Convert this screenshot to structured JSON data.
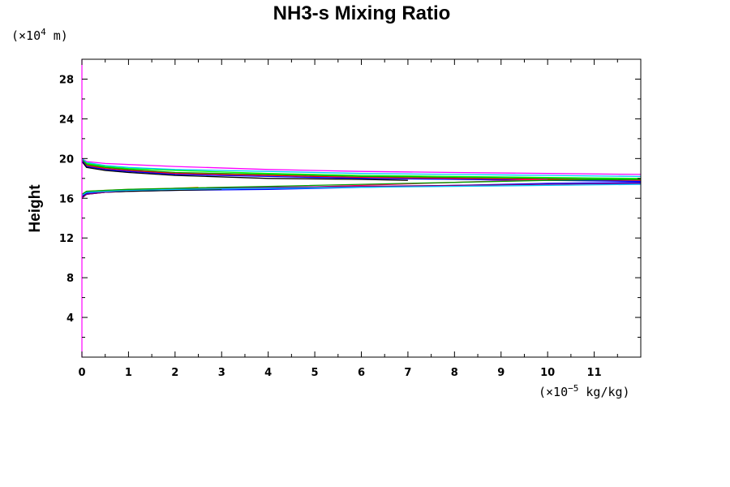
{
  "chart_data": {
    "type": "line",
    "title": "NH3-s Mixing Ratio",
    "ylabel": "Height",
    "xlabel": "",
    "x_unit": {
      "prefix": "(×10",
      "exp": "−5",
      "suffix": " kg/kg)"
    },
    "y_unit": {
      "prefix": "(×10",
      "exp": "4",
      "suffix": " m)"
    },
    "xlim": [
      0,
      12
    ],
    "ylim": [
      0,
      30
    ],
    "x_ticks": [
      "0",
      "1",
      "2",
      "3",
      "4",
      "5",
      "6",
      "7",
      "8",
      "9",
      "10",
      "11"
    ],
    "y_ticks": [
      "4",
      "8",
      "12",
      "16",
      "20",
      "24",
      "28"
    ],
    "grid": false,
    "series": [
      {
        "color": "#ff00ff",
        "x": [
          0,
          0.1,
          0.5,
          1,
          2,
          4,
          6,
          8,
          10,
          12
        ],
        "y": [
          20.0,
          19.7,
          19.5,
          19.4,
          19.2,
          18.9,
          18.7,
          18.6,
          18.5,
          18.4
        ]
      },
      {
        "color": "#00c8ff",
        "x": [
          0,
          0.1,
          0.5,
          1,
          2,
          4,
          6,
          8,
          10,
          12
        ],
        "y": [
          20.0,
          19.6,
          19.3,
          19.1,
          18.9,
          18.7,
          18.5,
          18.4,
          18.3,
          18.2
        ]
      },
      {
        "color": "#00ff00",
        "x": [
          0,
          0.1,
          0.5,
          1,
          2,
          4,
          6,
          8,
          10,
          12
        ],
        "y": [
          19.9,
          19.5,
          19.2,
          19.0,
          18.8,
          18.5,
          18.3,
          18.2,
          18.1,
          18.0
        ]
      },
      {
        "color": "#00a000",
        "x": [
          0,
          0.1,
          0.5,
          1,
          2,
          4,
          6,
          8,
          10,
          12
        ],
        "y": [
          19.9,
          19.4,
          19.1,
          18.9,
          18.6,
          18.4,
          18.2,
          18.1,
          18.0,
          17.9
        ]
      },
      {
        "color": "#ff0000",
        "x": [
          0,
          0.1,
          0.5,
          1,
          2,
          4,
          6,
          8,
          10,
          12
        ],
        "y": [
          19.8,
          19.3,
          19.0,
          18.8,
          18.5,
          18.3,
          18.1,
          18.0,
          17.9,
          17.8
        ]
      },
      {
        "color": "#0000ff",
        "x": [
          0,
          0.1,
          0.5,
          1,
          2,
          4,
          6,
          8,
          10,
          12
        ],
        "y": [
          19.8,
          19.2,
          18.9,
          18.7,
          18.4,
          18.2,
          18.0,
          17.9,
          17.8,
          17.7
        ]
      },
      {
        "color": "#000000",
        "x": [
          0,
          0.1,
          0.5,
          1,
          2,
          4,
          6,
          7
        ],
        "y": [
          19.7,
          19.1,
          18.8,
          18.6,
          18.3,
          18.0,
          17.9,
          17.8
        ]
      },
      {
        "color": "#ff8c00",
        "x": [
          0,
          0.1,
          0.5,
          1,
          2,
          2.5
        ],
        "y": [
          16.4,
          16.7,
          16.8,
          16.9,
          17.0,
          17.1
        ]
      },
      {
        "color": "#ff0066",
        "x": [
          0,
          0.1,
          0.5,
          1,
          2,
          4,
          6,
          8,
          10
        ],
        "y": [
          16.3,
          16.6,
          16.7,
          16.8,
          16.9,
          17.0,
          17.3,
          17.6,
          17.9
        ]
      },
      {
        "color": "#0000ff",
        "x": [
          0,
          0.1,
          0.5,
          1,
          2,
          4,
          6,
          8,
          10,
          12
        ],
        "y": [
          16.2,
          16.5,
          16.6,
          16.7,
          16.8,
          16.9,
          17.1,
          17.3,
          17.5,
          17.6
        ]
      },
      {
        "color": "#000000",
        "x": [
          0,
          0.1,
          0.5,
          1,
          2,
          3
        ],
        "y": [
          16.1,
          16.4,
          16.6,
          16.7,
          16.8,
          16.9
        ]
      },
      {
        "color": "#800080",
        "x": [
          0,
          0.1,
          0.5,
          1,
          2,
          4,
          6,
          8,
          10,
          12
        ],
        "y": [
          16.0,
          16.4,
          16.6,
          16.8,
          17.0,
          17.1,
          17.2,
          17.3,
          17.4,
          17.5
        ]
      },
      {
        "color": "#00c8ff",
        "x": [
          0,
          0.1,
          0.5,
          1,
          2,
          4,
          6,
          8,
          10,
          12
        ],
        "y": [
          16.3,
          16.6,
          16.7,
          16.8,
          16.9,
          17.0,
          17.1,
          17.2,
          17.3,
          17.4
        ]
      },
      {
        "color": "#00a000",
        "x": [
          0,
          0.1,
          0.5,
          1,
          2,
          4,
          6,
          8,
          10,
          12
        ],
        "y": [
          16.4,
          16.7,
          16.8,
          16.9,
          17.0,
          17.2,
          17.4,
          17.6,
          17.8,
          17.9
        ]
      }
    ]
  }
}
